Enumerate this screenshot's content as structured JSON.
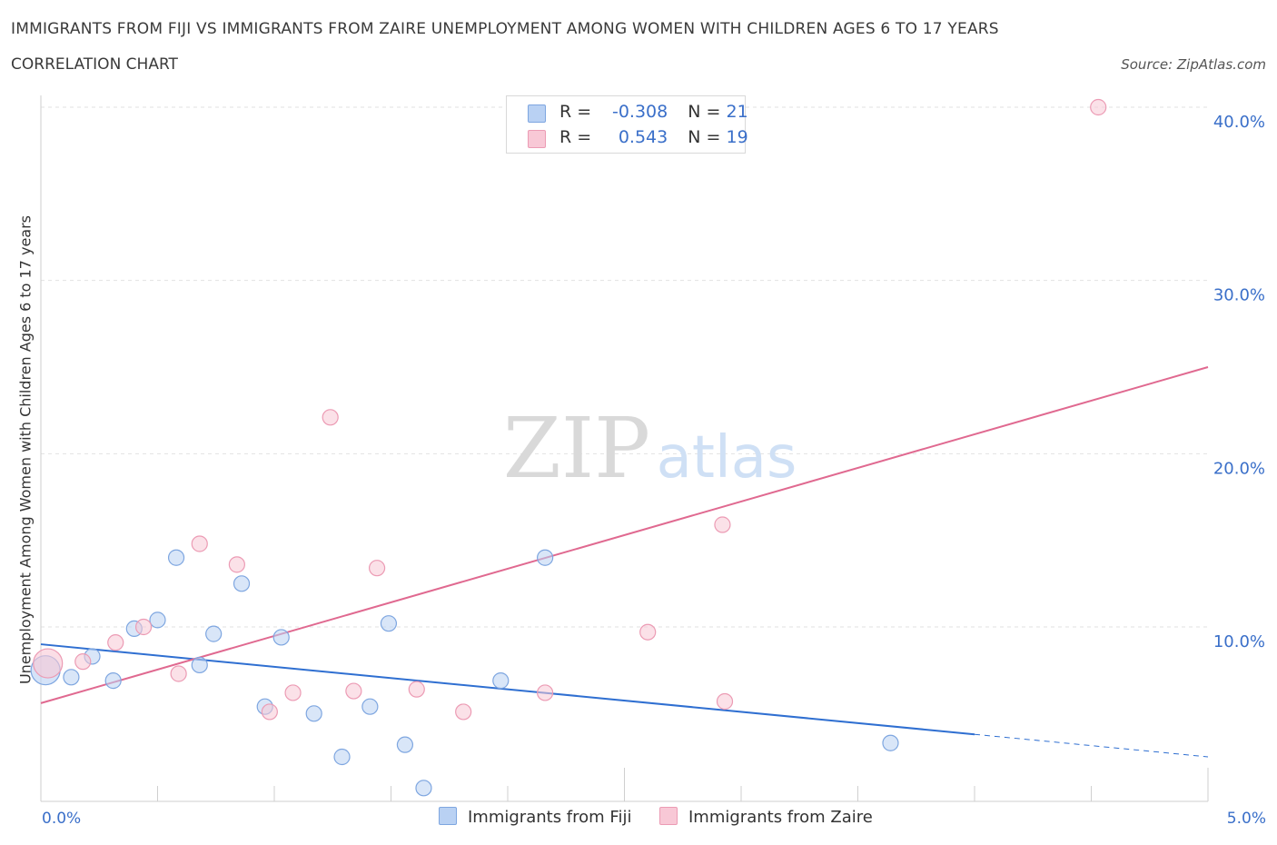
{
  "header": {
    "title": "IMMIGRANTS FROM FIJI VS IMMIGRANTS FROM ZAIRE UNEMPLOYMENT AMONG WOMEN WITH CHILDREN AGES 6 TO 17 YEARS",
    "subtitle": "CORRELATION CHART",
    "source": "Source: ZipAtlas.com"
  },
  "watermark": {
    "zip": "ZIP",
    "atlas": "atlas"
  },
  "legend_top": {
    "fiji": {
      "r_label": "R =",
      "r_value": "-0.308",
      "n_label": "N =",
      "n_value": "21"
    },
    "zaire": {
      "r_label": "R =",
      "r_value": "0.543",
      "n_label": "N =",
      "n_value": "19"
    }
  },
  "legend_bottom": {
    "fiji": "Immigrants from Fiji",
    "zaire": "Immigrants from Zaire"
  },
  "x_axis": {
    "min_label": "0.0%",
    "max_label": "5.0%"
  },
  "colors": {
    "fiji_fill": "#b9d1f3",
    "fiji_stroke": "#7ea6e0",
    "fiji_line": "#2f6fd1",
    "zaire_fill": "#f8c8d6",
    "zaire_stroke": "#ec9bb4",
    "zaire_line": "#e06990",
    "tick_text": "#3a6fc9"
  },
  "chart_data": {
    "type": "scatter",
    "title": "IMMIGRANTS FROM FIJI VS IMMIGRANTS FROM ZAIRE UNEMPLOYMENT AMONG WOMEN WITH CHILDREN AGES 6 TO 17 YEARS",
    "xlabel": "",
    "ylabel": "Unemployment Among Women with Children Ages 6 to 17 years",
    "xlim": [
      0,
      5
    ],
    "ylim": [
      0,
      40
    ],
    "x_ticks": [
      "0.0%",
      "5.0%"
    ],
    "y_ticks": [
      {
        "value": 10,
        "label": "10.0%"
      },
      {
        "value": 20,
        "label": "20.0%"
      },
      {
        "value": 30,
        "label": "30.0%"
      },
      {
        "value": 40,
        "label": "40.0%"
      }
    ],
    "grid": true,
    "legend_position": "bottom",
    "series": [
      {
        "name": "Immigrants from Fiji",
        "points": [
          {
            "x": 0.02,
            "y": 7.5,
            "big": true
          },
          {
            "x": 0.13,
            "y": 7.1
          },
          {
            "x": 0.22,
            "y": 8.3
          },
          {
            "x": 0.31,
            "y": 6.9
          },
          {
            "x": 0.4,
            "y": 9.9
          },
          {
            "x": 0.5,
            "y": 10.4
          },
          {
            "x": 0.58,
            "y": 14.0
          },
          {
            "x": 0.68,
            "y": 7.8
          },
          {
            "x": 0.74,
            "y": 9.6
          },
          {
            "x": 0.86,
            "y": 12.5
          },
          {
            "x": 0.96,
            "y": 5.4
          },
          {
            "x": 1.03,
            "y": 9.4
          },
          {
            "x": 1.17,
            "y": 5.0
          },
          {
            "x": 1.29,
            "y": 2.5
          },
          {
            "x": 1.41,
            "y": 5.4
          },
          {
            "x": 1.49,
            "y": 10.2
          },
          {
            "x": 1.56,
            "y": 3.2
          },
          {
            "x": 1.64,
            "y": 0.7
          },
          {
            "x": 1.97,
            "y": 6.9
          },
          {
            "x": 2.16,
            "y": 14.0
          },
          {
            "x": 3.64,
            "y": 3.3
          }
        ],
        "trend": {
          "x0": 0.0,
          "y0": 9.0,
          "x1": 4.0,
          "y1": 3.8,
          "dashed_to_x": 5.0,
          "dashed_to_y": 2.5
        }
      },
      {
        "name": "Immigrants from Zaire",
        "points": [
          {
            "x": 0.03,
            "y": 7.9,
            "big": true
          },
          {
            "x": 0.18,
            "y": 8.0
          },
          {
            "x": 0.32,
            "y": 9.1
          },
          {
            "x": 0.44,
            "y": 10.0
          },
          {
            "x": 0.59,
            "y": 7.3
          },
          {
            "x": 0.68,
            "y": 14.8
          },
          {
            "x": 0.84,
            "y": 13.6
          },
          {
            "x": 0.98,
            "y": 5.1
          },
          {
            "x": 1.08,
            "y": 6.2
          },
          {
            "x": 1.24,
            "y": 22.1
          },
          {
            "x": 1.34,
            "y": 6.3
          },
          {
            "x": 1.44,
            "y": 13.4
          },
          {
            "x": 1.61,
            "y": 6.4
          },
          {
            "x": 1.81,
            "y": 5.1
          },
          {
            "x": 2.16,
            "y": 6.2
          },
          {
            "x": 2.6,
            "y": 9.7
          },
          {
            "x": 2.92,
            "y": 15.9
          },
          {
            "x": 2.93,
            "y": 5.7
          },
          {
            "x": 4.53,
            "y": 40.0
          }
        ],
        "trend": {
          "x0": 0.0,
          "y0": 5.6,
          "x1": 5.0,
          "y1": 25.0
        }
      }
    ]
  }
}
